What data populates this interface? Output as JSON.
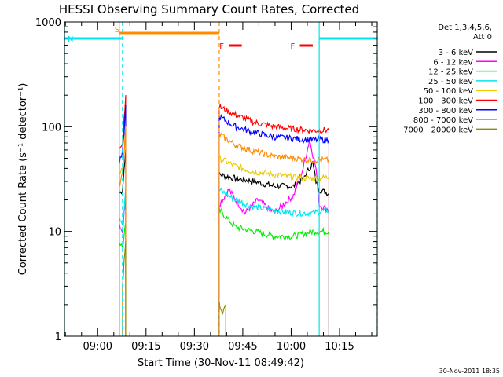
{
  "chart_data": {
    "type": "line",
    "title": "HESSI Observing Summary Count Rates, Corrected",
    "xlabel": "Start Time (30-Nov-11 08:49:42)",
    "ylabel": "Corrected Count Rate (s⁻¹ detector⁻¹)",
    "y_scale": "log",
    "ylim": [
      1,
      1000
    ],
    "y_ticks": [
      1,
      10,
      100,
      1000
    ],
    "y_tick_labels": [
      "1",
      "10",
      "100",
      "1000"
    ],
    "xlim": [
      "08:49:42",
      "10:26:42"
    ],
    "x_ticks": [
      "09:00",
      "09:15",
      "09:30",
      "09:45",
      "10:00",
      "10:15"
    ],
    "grid": false,
    "legend_header": [
      "Det 1,3,4,5,6,",
      "Att 0"
    ],
    "legend_position": "top-right outside plot",
    "timestamp": "30-Nov-2011 18:35",
    "flags": [
      {
        "label": "S",
        "color": "#ff8c00",
        "start": "09:06:42",
        "end": "09:37:42"
      },
      {
        "label": "N",
        "color": "#00e5ee",
        "start": "08:49:42",
        "end": "09:07:42"
      },
      {
        "label": "N",
        "color": "#00e5ee",
        "start": "10:08:42",
        "end": "10:26:42"
      },
      {
        "label": "F",
        "color": "#ff0000",
        "start": "09:40:42",
        "end": "09:44:42"
      },
      {
        "label": "F",
        "color": "#ff0000",
        "start": "10:02:42",
        "end": "10:06:42"
      }
    ],
    "vertical_markers": [
      {
        "time": "08:49:42",
        "color": "#00e5ee",
        "style": "solid"
      },
      {
        "time": "09:06:42",
        "color": "#00e5ee",
        "style": "solid"
      },
      {
        "time": "09:07:42",
        "color": "#00e5ee",
        "style": "dashed"
      },
      {
        "time": "09:37:42",
        "color": "#ff8c00",
        "style": "dashed"
      },
      {
        "time": "10:08:42",
        "color": "#00e5ee",
        "style": "solid"
      },
      {
        "time": "10:26:42",
        "color": "#00e5ee",
        "style": "dashed"
      }
    ],
    "series": [
      {
        "name": "3 - 6 keV",
        "color": "#000000",
        "segments": [
          {
            "x": [
              "09:06:42",
              "09:07:42",
              "09:08:12",
              "09:08:42"
            ],
            "y": [
              23,
              25,
              40,
              60
            ]
          },
          {
            "x": [
              "09:37:42",
              "09:42:42",
              "09:48:42",
              "09:54:42",
              "10:00:42",
              "10:03:42",
              "10:06:42",
              "10:07:42",
              "10:08:42",
              "10:11:42"
            ],
            "y": [
              35,
              32,
              30,
              27,
              27,
              32,
              45,
              30,
              25,
              23
            ]
          }
        ]
      },
      {
        "name": "6 - 12 keV",
        "color": "#ff00ff",
        "segments": [
          {
            "x": [
              "09:06:42",
              "09:07:42",
              "09:08:12",
              "09:08:42"
            ],
            "y": [
              12,
              10,
              15,
              20
            ]
          },
          {
            "x": [
              "09:37:42",
              "09:40:42",
              "09:45:42",
              "09:49:42",
              "09:54:42",
              "10:00:42",
              "10:03:42",
              "10:05:42",
              "10:07:42",
              "10:08:42",
              "10:11:42"
            ],
            "y": [
              18,
              25,
              15,
              20,
              15,
              22,
              40,
              75,
              40,
              18,
              16
            ]
          }
        ]
      },
      {
        "name": "12 - 25 keV",
        "color": "#00ee00",
        "segments": [
          {
            "x": [
              "09:06:42",
              "09:07:42",
              "09:08:12",
              "09:08:42"
            ],
            "y": [
              8,
              7,
              9,
              12
            ]
          },
          {
            "x": [
              "09:37:42",
              "09:42:42",
              "09:48:42",
              "09:54:42",
              "10:00:42",
              "10:06:42",
              "10:11:42"
            ],
            "y": [
              16,
              11,
              10,
              9,
              9,
              10,
              10
            ]
          }
        ]
      },
      {
        "name": "25 - 50 keV",
        "color": "#00e5ee",
        "segments": [
          {
            "x": [
              "09:06:42",
              "09:07:42",
              "09:08:12",
              "09:08:42"
            ],
            "y": [
              14,
              12,
              16,
              25
            ]
          },
          {
            "x": [
              "09:37:42",
              "09:42:42",
              "09:48:42",
              "09:54:42",
              "10:00:42",
              "10:06:42",
              "10:11:42"
            ],
            "y": [
              25,
              20,
              17,
              16,
              15,
              15,
              16
            ]
          }
        ]
      },
      {
        "name": "50 - 100 keV",
        "color": "#eec900",
        "segments": [
          {
            "x": [
              "09:06:42",
              "09:07:42",
              "09:08:12",
              "09:08:42"
            ],
            "y": [
              35,
              40,
              60,
              80
            ]
          },
          {
            "x": [
              "09:37:42",
              "09:42:42",
              "09:48:42",
              "09:54:42",
              "10:00:42",
              "10:06:42",
              "10:11:42"
            ],
            "y": [
              50,
              42,
              37,
              35,
              33,
              32,
              33
            ]
          }
        ]
      },
      {
        "name": "100 - 300 keV",
        "color": "#ff0000",
        "segments": [
          {
            "x": [
              "09:06:42",
              "09:07:42",
              "09:08:12",
              "09:08:42"
            ],
            "y": [
              65,
              70,
              120,
              200
            ]
          },
          {
            "x": [
              "09:37:42",
              "09:42:42",
              "09:48:42",
              "09:54:42",
              "10:00:42",
              "10:06:42",
              "10:11:42"
            ],
            "y": [
              155,
              130,
              110,
              100,
              95,
              92,
              93
            ]
          }
        ]
      },
      {
        "name": "300 - 800 keV",
        "color": "#0000ff",
        "segments": [
          {
            "x": [
              "09:06:42",
              "09:07:42",
              "09:08:12",
              "09:08:42"
            ],
            "y": [
              45,
              55,
              90,
              160
            ]
          },
          {
            "x": [
              "09:37:42",
              "09:42:42",
              "09:48:42",
              "09:54:42",
              "10:00:42",
              "10:06:42",
              "10:11:42"
            ],
            "y": [
              125,
              100,
              88,
              80,
              77,
              75,
              75
            ]
          }
        ]
      },
      {
        "name": "800 - 7000 keV",
        "color": "#ff8c00",
        "segments": [
          {
            "x": [
              "09:06:42",
              "09:07:42",
              "09:08:12",
              "09:08:42"
            ],
            "y": [
              28,
              35,
              55,
              100
            ]
          },
          {
            "x": [
              "09:37:42",
              "09:42:42",
              "09:48:42",
              "09:54:42",
              "10:00:42",
              "10:06:42",
              "10:11:42"
            ],
            "y": [
              85,
              67,
              58,
              52,
              50,
              48,
              48
            ]
          }
        ]
      },
      {
        "name": "7000 - 20000 keV",
        "color": "#8b8b00",
        "segments": [
          {
            "x": [
              "09:07:42",
              "09:08:12",
              "09:08:42"
            ],
            "y": [
              3,
              5,
              8
            ]
          },
          {
            "x": [
              "09:37:42",
              "09:38:42",
              "09:39:42"
            ],
            "y": [
              2,
              1.6,
              2
            ]
          }
        ]
      }
    ]
  }
}
